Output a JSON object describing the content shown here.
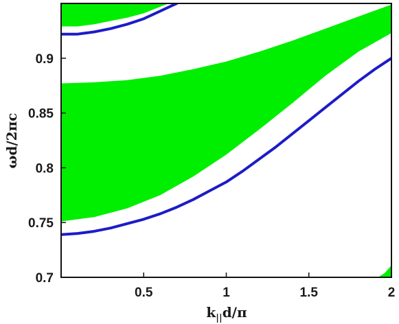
{
  "chart_data": {
    "type": "area",
    "title": "",
    "xlabel": "k",
    "xlabel_sub": "||",
    "xlabel_tail": "d/π",
    "ylabel": "ωd/2πc",
    "xlim": [
      0,
      2
    ],
    "ylim": [
      0.7,
      0.95
    ],
    "grid": false,
    "x_ticks": [
      {
        "value": 0.5,
        "label": "0.5"
      },
      {
        "value": 1,
        "label": "1"
      },
      {
        "value": 1.5,
        "label": "1.5"
      },
      {
        "value": 2,
        "label": "2"
      }
    ],
    "y_ticks": [
      {
        "value": 0.7,
        "label": "0.7"
      },
      {
        "value": 0.75,
        "label": "0.75"
      },
      {
        "value": 0.8,
        "label": "0.8"
      },
      {
        "value": 0.85,
        "label": "0.85"
      },
      {
        "value": 0.9,
        "label": "0.9"
      }
    ],
    "bands": [
      {
        "color": "#00ee00",
        "lower": [
          [
            0,
            0.751
          ],
          [
            0.2,
            0.755
          ],
          [
            0.4,
            0.763
          ],
          [
            0.6,
            0.775
          ],
          [
            0.8,
            0.792
          ],
          [
            1.0,
            0.812
          ],
          [
            1.2,
            0.835
          ],
          [
            1.4,
            0.859
          ],
          [
            1.6,
            0.884
          ],
          [
            1.8,
            0.906
          ],
          [
            2.0,
            0.923
          ]
        ],
        "upper": [
          [
            0,
            0.877
          ],
          [
            0.2,
            0.878
          ],
          [
            0.4,
            0.88
          ],
          [
            0.6,
            0.884
          ],
          [
            0.8,
            0.89
          ],
          [
            1.0,
            0.897
          ],
          [
            1.2,
            0.906
          ],
          [
            1.4,
            0.916
          ],
          [
            1.6,
            0.927
          ],
          [
            1.8,
            0.938
          ],
          [
            2.0,
            0.949
          ]
        ]
      },
      {
        "color": "#00ee00",
        "lower": [
          [
            0,
            0.929
          ],
          [
            0.1,
            0.929
          ],
          [
            0.2,
            0.931
          ],
          [
            0.3,
            0.934
          ],
          [
            0.4,
            0.937
          ],
          [
            0.5,
            0.941
          ],
          [
            0.55,
            0.944
          ],
          [
            0.6,
            0.947
          ],
          [
            0.65,
            0.95
          ]
        ],
        "upper": [
          [
            0,
            0.95
          ],
          [
            0.65,
            0.95
          ]
        ]
      },
      {
        "color": "#00ee00",
        "lower": [
          [
            1.92,
            0.7
          ],
          [
            2.0,
            0.7
          ]
        ],
        "upper": [
          [
            1.92,
            0.7
          ],
          [
            1.96,
            0.704
          ],
          [
            2.0,
            0.711
          ]
        ]
      }
    ],
    "series": [
      {
        "color": "#1c1cc8",
        "x": [
          0,
          0.1,
          0.2,
          0.3,
          0.4,
          0.5,
          0.6,
          0.7,
          0.8,
          0.9,
          1.0,
          1.1,
          1.2,
          1.3,
          1.4,
          1.5,
          1.6,
          1.7,
          1.8,
          1.9,
          2.0
        ],
        "y": [
          0.739,
          0.74,
          0.742,
          0.745,
          0.749,
          0.753,
          0.758,
          0.764,
          0.771,
          0.779,
          0.787,
          0.797,
          0.808,
          0.819,
          0.831,
          0.843,
          0.855,
          0.867,
          0.879,
          0.89,
          0.9
        ]
      },
      {
        "color": "#1c1cc8",
        "x": [
          0,
          0.1,
          0.2,
          0.3,
          0.4,
          0.5,
          0.6,
          0.7
        ],
        "y": [
          0.922,
          0.922,
          0.924,
          0.927,
          0.931,
          0.936,
          0.943,
          0.95
        ]
      }
    ]
  }
}
